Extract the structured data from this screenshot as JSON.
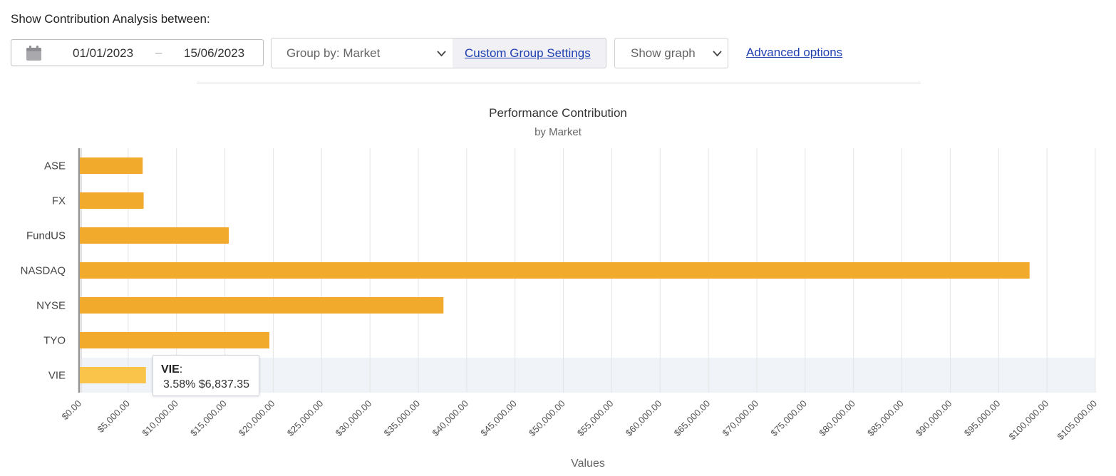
{
  "heading": "Show Contribution Analysis between:",
  "date_range": {
    "start": "01/01/2023",
    "separator": "–",
    "end": "15/06/2023",
    "icon": "calendar-icon"
  },
  "group_by": {
    "selected": "Group by: Market"
  },
  "custom_group_settings": "Custom Group Settings",
  "graph_mode": {
    "selected": "Show graph"
  },
  "advanced_options": "Advanced options",
  "colors": {
    "bar": "#f2aa2c",
    "bar_highlight": "#fac44b",
    "link": "#1f3fb0",
    "hover_band": "#f0f3f8"
  },
  "tooltip": {
    "category": "VIE",
    "colon": ":",
    "percent": "3.58%",
    "value": "$6,837.35"
  },
  "chart_data": {
    "type": "bar",
    "orientation": "horizontal",
    "title": "Performance Contribution",
    "subtitle": "by Market",
    "xlabel": "Values",
    "ylabel": "",
    "categories": [
      "ASE",
      "FX",
      "FundUS",
      "NASDAQ",
      "NYSE",
      "TYO",
      "VIE"
    ],
    "values": [
      6500,
      6600,
      15400,
      98200,
      37600,
      19600,
      6837.35
    ],
    "xlim": [
      0,
      105000
    ],
    "xtick_step": 5000,
    "xtick_labels": [
      "$0.00",
      "$5,000.00",
      "$10,000.00",
      "$15,000.00",
      "$20,000.00",
      "$25,000.00",
      "$30,000.00",
      "$35,000.00",
      "$40,000.00",
      "$45,000.00",
      "$50,000.00",
      "$55,000.00",
      "$60,000.00",
      "$65,000.00",
      "$70,000.00",
      "$75,000.00",
      "$80,000.00",
      "$85,000.00",
      "$90,000.00",
      "$95,000.00",
      "$100,000.00",
      "$105,000.00"
    ],
    "grid": true,
    "legend": "none",
    "highlighted_category": "VIE"
  }
}
